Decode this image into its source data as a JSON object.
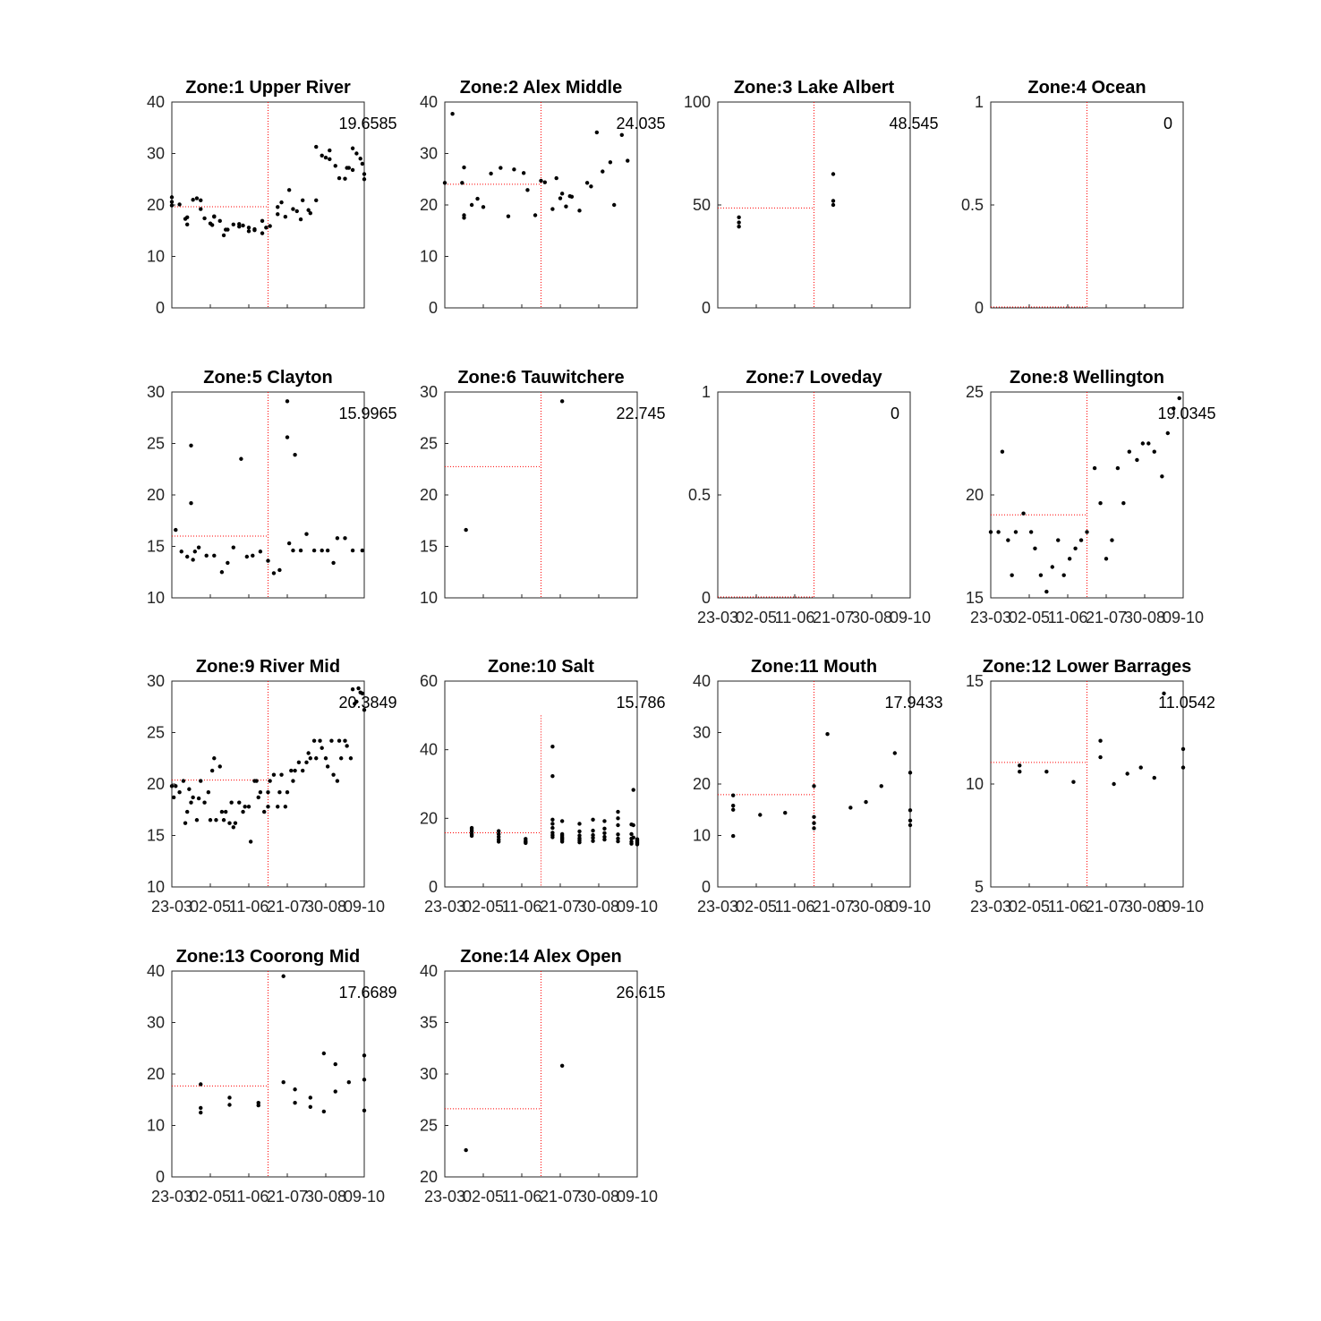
{
  "chart_data": [
    {
      "type": "scatter",
      "title": "Zone:1 Upper River",
      "ylim": [
        0,
        40
      ],
      "yticks": [
        "0",
        "10",
        "20",
        "30",
        "40"
      ],
      "xticklabels": [],
      "mean_label": "19.6585",
      "mean_value": 19.66,
      "x": [
        0.0,
        0.0,
        0.0,
        0.04,
        0.07,
        0.08,
        0.08,
        0.11,
        0.13,
        0.15,
        0.15,
        0.17,
        0.2,
        0.21,
        0.22,
        0.22,
        0.25,
        0.27,
        0.28,
        0.29,
        0.32,
        0.35,
        0.35,
        0.37,
        0.4,
        0.4,
        0.43,
        0.43,
        0.47,
        0.47,
        0.49,
        0.51,
        0.55,
        0.55,
        0.57,
        0.59,
        0.61,
        0.63,
        0.65,
        0.67,
        0.68,
        0.71,
        0.72,
        0.75,
        0.75,
        0.78,
        0.8,
        0.82,
        0.82,
        0.85,
        0.87,
        0.9,
        0.91,
        0.92,
        0.94,
        0.94,
        0.96,
        0.98,
        0.99,
        1.0,
        1.0
      ],
      "y": [
        21.5,
        20.6,
        19.9,
        20.1,
        17.3,
        16.2,
        17.6,
        21.0,
        21.3,
        20.9,
        19.2,
        17.4,
        16.4,
        16.1,
        17.8,
        17.7,
        16.9,
        14.1,
        15.2,
        15.2,
        16.2,
        16.3,
        15.8,
        16.0,
        15.6,
        14.9,
        15.3,
        15.1,
        14.5,
        16.9,
        15.6,
        15.9,
        18.2,
        19.6,
        20.5,
        17.7,
        22.9,
        19.2,
        18.8,
        17.2,
        20.9,
        19.0,
        18.4,
        20.9,
        31.3,
        29.6,
        29.2,
        28.9,
        30.6,
        27.6,
        25.2,
        25.1,
        27.2,
        27.2,
        26.8,
        31.0,
        30.0,
        29.0,
        28.0,
        26.0,
        25.0
      ]
    },
    {
      "type": "scatter",
      "title": "Zone:2 Alex Middle",
      "ylim": [
        0,
        40
      ],
      "yticks": [
        "0",
        "10",
        "20",
        "30",
        "40"
      ],
      "xticklabels": [],
      "mean_label": "24.035",
      "mean_value": 24.03,
      "x": [
        0.0,
        0.04,
        0.09,
        0.1,
        0.1,
        0.1,
        0.14,
        0.17,
        0.2,
        0.24,
        0.29,
        0.33,
        0.36,
        0.41,
        0.43,
        0.47,
        0.5,
        0.52,
        0.56,
        0.58,
        0.6,
        0.61,
        0.63,
        0.65,
        0.66,
        0.7,
        0.74,
        0.76,
        0.79,
        0.82,
        0.86,
        0.88,
        0.92,
        0.95
      ],
      "y": [
        24.3,
        37.7,
        24.3,
        27.3,
        17.5,
        18.0,
        20.0,
        21.2,
        19.6,
        26.1,
        27.2,
        17.8,
        26.9,
        26.2,
        22.9,
        18.0,
        24.7,
        24.4,
        19.2,
        25.2,
        21.3,
        22.2,
        19.7,
        21.7,
        21.6,
        18.9,
        24.3,
        23.6,
        34.1,
        26.5,
        28.3,
        20.0,
        33.6,
        28.6
      ]
    },
    {
      "type": "scatter",
      "title": "Zone:3 Lake Albert",
      "ylim": [
        0,
        100
      ],
      "yticks": [
        "0",
        "50",
        "100"
      ],
      "xticklabels": [],
      "mean_label": "48.545",
      "mean_value": 48.55,
      "x": [
        0.11,
        0.11,
        0.11,
        0.6,
        0.6,
        0.6
      ],
      "y": [
        39.5,
        41.5,
        44.0,
        65.0,
        52.0,
        50.0
      ]
    },
    {
      "type": "scatter",
      "title": "Zone:4 Ocean",
      "ylim": [
        0,
        1
      ],
      "yticks": [
        "0",
        "0.5",
        "1"
      ],
      "xticklabels": [],
      "mean_label": "0",
      "mean_value": 0,
      "x": [],
      "y": []
    },
    {
      "type": "scatter",
      "title": "Zone:5 Clayton",
      "ylim": [
        10,
        30
      ],
      "yticks": [
        "10",
        "15",
        "20",
        "25",
        "30"
      ],
      "xticklabels": [],
      "mean_label": "15.9965",
      "mean_value": 16.0,
      "x": [
        0.02,
        0.05,
        0.08,
        0.1,
        0.1,
        0.11,
        0.12,
        0.14,
        0.18,
        0.22,
        0.26,
        0.29,
        0.32,
        0.36,
        0.39,
        0.42,
        0.46,
        0.5,
        0.53,
        0.56,
        0.6,
        0.6,
        0.61,
        0.63,
        0.64,
        0.67,
        0.7,
        0.74,
        0.78,
        0.81,
        0.84,
        0.86,
        0.9,
        0.94,
        0.99
      ],
      "y": [
        16.6,
        14.5,
        14.0,
        24.8,
        19.2,
        13.7,
        14.5,
        14.9,
        14.1,
        14.1,
        12.5,
        13.4,
        14.9,
        23.5,
        14.0,
        14.1,
        14.5,
        13.6,
        12.4,
        12.7,
        29.1,
        25.6,
        15.3,
        14.6,
        23.9,
        14.6,
        16.2,
        14.6,
        14.6,
        14.6,
        13.4,
        15.8,
        15.8,
        14.6,
        14.6
      ]
    },
    {
      "type": "scatter",
      "title": "Zone:6 Tauwitchere",
      "ylim": [
        10,
        30
      ],
      "yticks": [
        "10",
        "15",
        "20",
        "25",
        "30"
      ],
      "xticklabels": [],
      "mean_label": "22.745",
      "mean_value": 22.75,
      "x": [
        0.11,
        0.61
      ],
      "y": [
        16.6,
        29.1
      ]
    },
    {
      "type": "scatter",
      "title": "Zone:7 Loveday",
      "ylim": [
        0,
        1
      ],
      "yticks": [
        "0",
        "0.5",
        "1"
      ],
      "xticklabels": [
        "23-03",
        "02-05",
        "11-06",
        "21-07",
        "30-08",
        "09-10"
      ],
      "mean_label": "0",
      "mean_value": 0,
      "x": [],
      "y": []
    },
    {
      "type": "scatter",
      "title": "Zone:8 Wellington",
      "ylim": [
        15,
        25
      ],
      "yticks": [
        "15",
        "20",
        "25"
      ],
      "xticklabels": [
        "23-03",
        "02-05",
        "11-06",
        "21-07",
        "30-08",
        "09-10"
      ],
      "mean_label": "19.0345",
      "mean_value": 19.03,
      "x": [
        0.0,
        0.04,
        0.06,
        0.09,
        0.11,
        0.13,
        0.17,
        0.21,
        0.23,
        0.26,
        0.29,
        0.32,
        0.35,
        0.38,
        0.41,
        0.44,
        0.47,
        0.5,
        0.54,
        0.57,
        0.6,
        0.63,
        0.66,
        0.69,
        0.72,
        0.76,
        0.79,
        0.82,
        0.85,
        0.89,
        0.92,
        0.95,
        0.98
      ],
      "y": [
        18.2,
        18.2,
        22.1,
        17.8,
        16.1,
        18.2,
        19.1,
        18.2,
        17.4,
        16.1,
        15.3,
        16.5,
        17.8,
        16.1,
        16.9,
        17.4,
        17.8,
        18.2,
        21.3,
        19.6,
        16.9,
        17.8,
        21.3,
        19.6,
        22.1,
        21.7,
        22.5,
        22.5,
        22.1,
        20.9,
        23.0,
        24.2,
        24.7
      ]
    },
    {
      "type": "scatter",
      "title": "Zone:9 River Mid",
      "ylim": [
        10,
        30
      ],
      "yticks": [
        "10",
        "15",
        "20",
        "25",
        "30"
      ],
      "xticklabels": [
        "23-03",
        "02-05",
        "11-06",
        "21-07",
        "30-08",
        "09-10"
      ],
      "mean_label": "20.3849",
      "mean_value": 20.38,
      "x": [
        0.0,
        0.01,
        0.02,
        0.04,
        0.06,
        0.07,
        0.08,
        0.09,
        0.1,
        0.11,
        0.13,
        0.14,
        0.15,
        0.17,
        0.19,
        0.2,
        0.21,
        0.22,
        0.23,
        0.25,
        0.26,
        0.27,
        0.28,
        0.3,
        0.31,
        0.32,
        0.33,
        0.35,
        0.37,
        0.38,
        0.4,
        0.41,
        0.43,
        0.44,
        0.45,
        0.46,
        0.48,
        0.5,
        0.5,
        0.51,
        0.53,
        0.55,
        0.56,
        0.57,
        0.59,
        0.6,
        0.62,
        0.63,
        0.64,
        0.66,
        0.68,
        0.7,
        0.71,
        0.72,
        0.74,
        0.75,
        0.77,
        0.78,
        0.8,
        0.81,
        0.83,
        0.84,
        0.86,
        0.87,
        0.88,
        0.9,
        0.91,
        0.93,
        0.94,
        0.95,
        0.96,
        0.97,
        0.98,
        0.99,
        1.0
      ],
      "y": [
        19.8,
        18.7,
        19.8,
        19.2,
        20.3,
        16.2,
        17.3,
        19.5,
        18.2,
        18.7,
        16.5,
        18.6,
        20.3,
        18.2,
        19.2,
        16.5,
        21.3,
        22.5,
        16.5,
        21.7,
        17.3,
        16.5,
        17.3,
        16.2,
        18.2,
        15.8,
        16.2,
        18.2,
        17.3,
        17.8,
        17.8,
        14.4,
        20.3,
        20.3,
        18.7,
        19.2,
        17.3,
        17.8,
        19.2,
        20.3,
        20.9,
        17.8,
        19.2,
        20.9,
        17.8,
        19.2,
        21.3,
        20.3,
        21.3,
        22.1,
        21.3,
        22.1,
        23.0,
        22.5,
        24.2,
        22.5,
        24.2,
        23.5,
        22.5,
        21.7,
        24.2,
        20.9,
        20.3,
        24.2,
        22.5,
        24.2,
        23.7,
        22.5,
        29.2,
        27.8,
        28.0,
        29.3,
        28.9,
        28.8,
        27.2
      ]
    },
    {
      "type": "scatter",
      "title": "Zone:10 Salt",
      "ylim": [
        0,
        60
      ],
      "yticks": [
        "0",
        "20",
        "40",
        "60"
      ],
      "xticklabels": [
        "23-03",
        "02-05",
        "11-06",
        "21-07",
        "30-08",
        "09-10"
      ],
      "mean_label": "15.786",
      "mean_value": 15.79,
      "x": [
        0.14,
        0.14,
        0.14,
        0.14,
        0.14,
        0.28,
        0.28,
        0.28,
        0.28,
        0.28,
        0.42,
        0.42,
        0.42,
        0.42,
        0.56,
        0.56,
        0.56,
        0.56,
        0.56,
        0.56,
        0.56,
        0.56,
        0.61,
        0.61,
        0.61,
        0.61,
        0.61,
        0.61,
        0.61,
        0.7,
        0.7,
        0.7,
        0.7,
        0.7,
        0.7,
        0.77,
        0.77,
        0.77,
        0.77,
        0.77,
        0.83,
        0.83,
        0.83,
        0.83,
        0.83,
        0.9,
        0.9,
        0.9,
        0.9,
        0.9,
        0.9,
        0.97,
        0.97,
        0.97,
        0.97,
        0.97,
        0.98,
        0.98,
        0.98,
        1.0,
        1.0,
        1.0,
        1.0,
        1.0,
        1.0
      ],
      "y": [
        17.2,
        16.6,
        16.1,
        15.4,
        14.9,
        16.3,
        15.4,
        14.6,
        13.8,
        13.2,
        14.0,
        13.4,
        13.1,
        12.8,
        40.9,
        32.3,
        19.6,
        18.4,
        17.2,
        15.8,
        15.1,
        14.5,
        19.2,
        15.4,
        14.9,
        14.4,
        14.1,
        13.7,
        13.2,
        18.4,
        16.2,
        15.0,
        14.2,
        13.6,
        13.0,
        19.6,
        16.4,
        15.1,
        14.3,
        13.4,
        19.2,
        17.0,
        15.7,
        14.6,
        13.8,
        21.9,
        20.0,
        18.0,
        15.3,
        14.1,
        13.3,
        18.2,
        15.4,
        14.1,
        13.2,
        12.6,
        28.3,
        18.0,
        14.4,
        13.9,
        13.6,
        13.3,
        13.0,
        12.7,
        12.4
      ]
    },
    {
      "type": "scatter",
      "title": "Zone:11 Mouth",
      "ylim": [
        0,
        40
      ],
      "yticks": [
        "0",
        "10",
        "20",
        "30",
        "40"
      ],
      "xticklabels": [
        "23-03",
        "02-05",
        "11-06",
        "21-07",
        "30-08",
        "09-10"
      ],
      "mean_label": "17.9433",
      "mean_value": 17.94,
      "x": [
        0.08,
        0.08,
        0.08,
        0.08,
        0.22,
        0.35,
        0.5,
        0.5,
        0.5,
        0.5,
        0.57,
        0.69,
        0.77,
        0.85,
        0.92,
        1.0,
        1.0,
        1.0,
        1.0
      ],
      "y": [
        17.8,
        15.8,
        15.0,
        9.9,
        14.0,
        14.4,
        19.6,
        13.6,
        12.4,
        11.4,
        29.7,
        15.4,
        16.5,
        19.6,
        26.0,
        22.2,
        14.9,
        12.9,
        12.0
      ]
    },
    {
      "type": "scatter",
      "title": "Zone:12 Lower Barrages",
      "ylim": [
        5,
        15
      ],
      "yticks": [
        "5",
        "10",
        "15"
      ],
      "xticklabels": [
        "23-03",
        "02-05",
        "11-06",
        "21-07",
        "30-08",
        "09-10"
      ],
      "mean_label": "11.0542",
      "mean_value": 11.05,
      "x": [
        0.15,
        0.15,
        0.29,
        0.43,
        0.57,
        0.57,
        0.64,
        0.71,
        0.78,
        0.85,
        0.9,
        1.0,
        1.0
      ],
      "y": [
        10.9,
        10.6,
        10.6,
        10.1,
        12.1,
        11.3,
        10.0,
        10.5,
        10.8,
        10.3,
        14.4,
        11.7,
        10.8
      ]
    },
    {
      "type": "scatter",
      "title": "Zone:13 Coorong Mid",
      "ylim": [
        0,
        40
      ],
      "yticks": [
        "0",
        "10",
        "20",
        "30",
        "40"
      ],
      "xticklabels": [
        "23-03",
        "02-05",
        "11-06",
        "21-07",
        "30-08",
        "09-10"
      ],
      "mean_label": "17.6689",
      "mean_value": 17.67,
      "x": [
        0.15,
        0.15,
        0.15,
        0.3,
        0.3,
        0.45,
        0.45,
        0.58,
        0.58,
        0.64,
        0.64,
        0.72,
        0.72,
        0.79,
        0.79,
        0.85,
        0.85,
        0.92,
        1.0,
        1.0,
        1.0
      ],
      "y": [
        18.0,
        13.4,
        12.5,
        15.4,
        14.0,
        14.4,
        13.9,
        39.0,
        18.4,
        14.4,
        17.0,
        13.6,
        15.4,
        12.7,
        24.0,
        21.9,
        16.6,
        18.4,
        23.6,
        18.9,
        12.9
      ]
    },
    {
      "type": "scatter",
      "title": "Zone:14 Alex Open",
      "ylim": [
        20,
        40
      ],
      "yticks": [
        "20",
        "25",
        "30",
        "35",
        "40"
      ],
      "xticklabels": [
        "23-03",
        "02-05",
        "11-06",
        "21-07",
        "30-08",
        "09-10"
      ],
      "mean_label": "26.615",
      "mean_value": 26.62,
      "x": [
        0.11,
        0.61
      ],
      "y": [
        22.6,
        30.8
      ]
    }
  ],
  "colors": {
    "points": "#000000",
    "mean_line": "#ff0000",
    "axes": "#262626"
  }
}
